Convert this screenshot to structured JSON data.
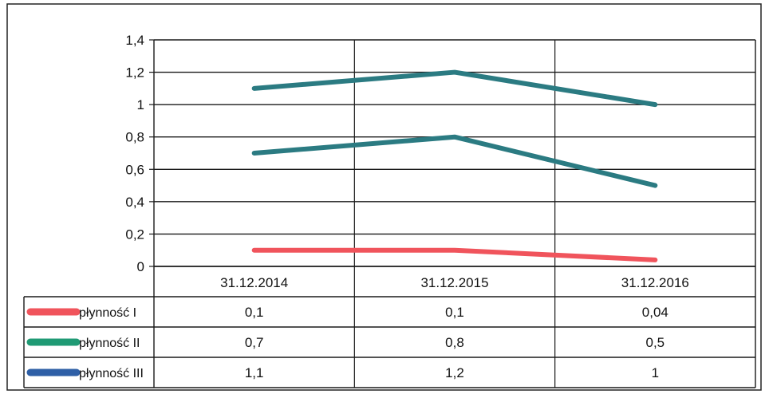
{
  "chart_data": {
    "type": "line",
    "categories": [
      "31.12.2014",
      "31.12.2015",
      "31.12.2016"
    ],
    "series": [
      {
        "name": "płynność I",
        "values": [
          0.1,
          0.1,
          0.04
        ],
        "display": [
          "0,1",
          "0,1",
          "0,04"
        ],
        "color": "#f0545c",
        "legend_color": "#f0545c"
      },
      {
        "name": "płynność II",
        "values": [
          0.7,
          0.8,
          0.5
        ],
        "display": [
          "0,7",
          "0,8",
          "0,5"
        ],
        "color": "#2b7b82",
        "legend_color": "#1f9a74"
      },
      {
        "name": "płynność III",
        "values": [
          1.1,
          1.2,
          1.0
        ],
        "display": [
          "1,1",
          "1,2",
          "1"
        ],
        "color": "#2b7b82",
        "legend_color": "#2e5fa6"
      }
    ],
    "yticks": [
      "0",
      "0,2",
      "0,4",
      "0,6",
      "0,8",
      "1",
      "1,2",
      "1,4"
    ],
    "ylim": [
      0,
      1.4
    ],
    "grid": true,
    "legend": "data-table"
  }
}
